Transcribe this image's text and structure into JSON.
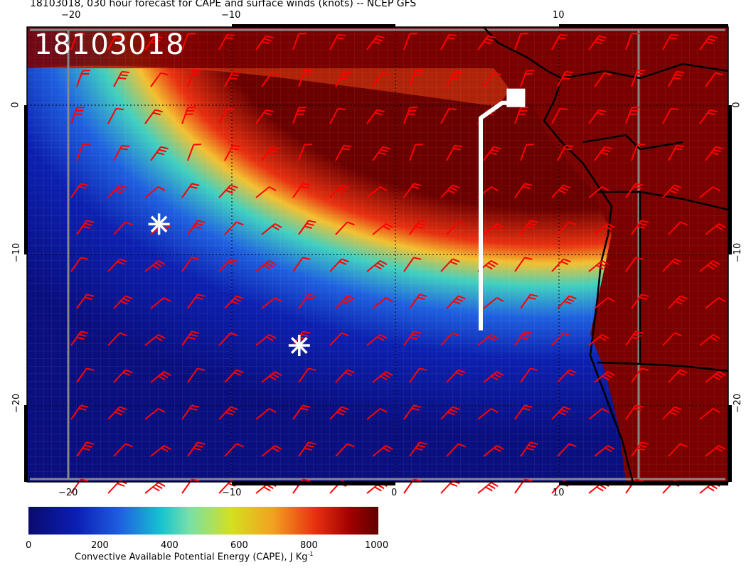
{
  "title": "18103018, 030 hour forecast for CAPE and surface winds (knots) -- NCEP GFS",
  "stamp": "18103018",
  "axes": {
    "top_x": [
      "−20",
      "−10",
      "10"
    ],
    "bottom_x": [
      "−20",
      "−10",
      "0",
      "10"
    ],
    "left_y": [
      "0",
      "−10",
      "−20"
    ],
    "right_y": [
      "0",
      "−10",
      "−20"
    ]
  },
  "colorbar": {
    "labels": [
      "0",
      "200",
      "400",
      "600",
      "800",
      "1000"
    ],
    "title": "Convective Available Potential Energy (CAPE), J Kg",
    "title_sup": "-1",
    "range": [
      0,
      1000
    ]
  },
  "map": {
    "lon_range": [
      -22.5,
      20
    ],
    "lat_range": [
      -25,
      5
    ],
    "markers": [
      {
        "type": "asterisk",
        "lon": -14.5,
        "lat": -8
      },
      {
        "type": "asterisk",
        "lon": -6,
        "lat": -16
      }
    ],
    "flight_track": {
      "points": [
        [
          5,
          -15
        ],
        [
          5,
          -1
        ],
        [
          6.3,
          0
        ],
        [
          7,
          0
        ]
      ],
      "end_marker": "square"
    },
    "wind_barb_color": "#ff0000",
    "track_color": "#ffffff"
  }
}
